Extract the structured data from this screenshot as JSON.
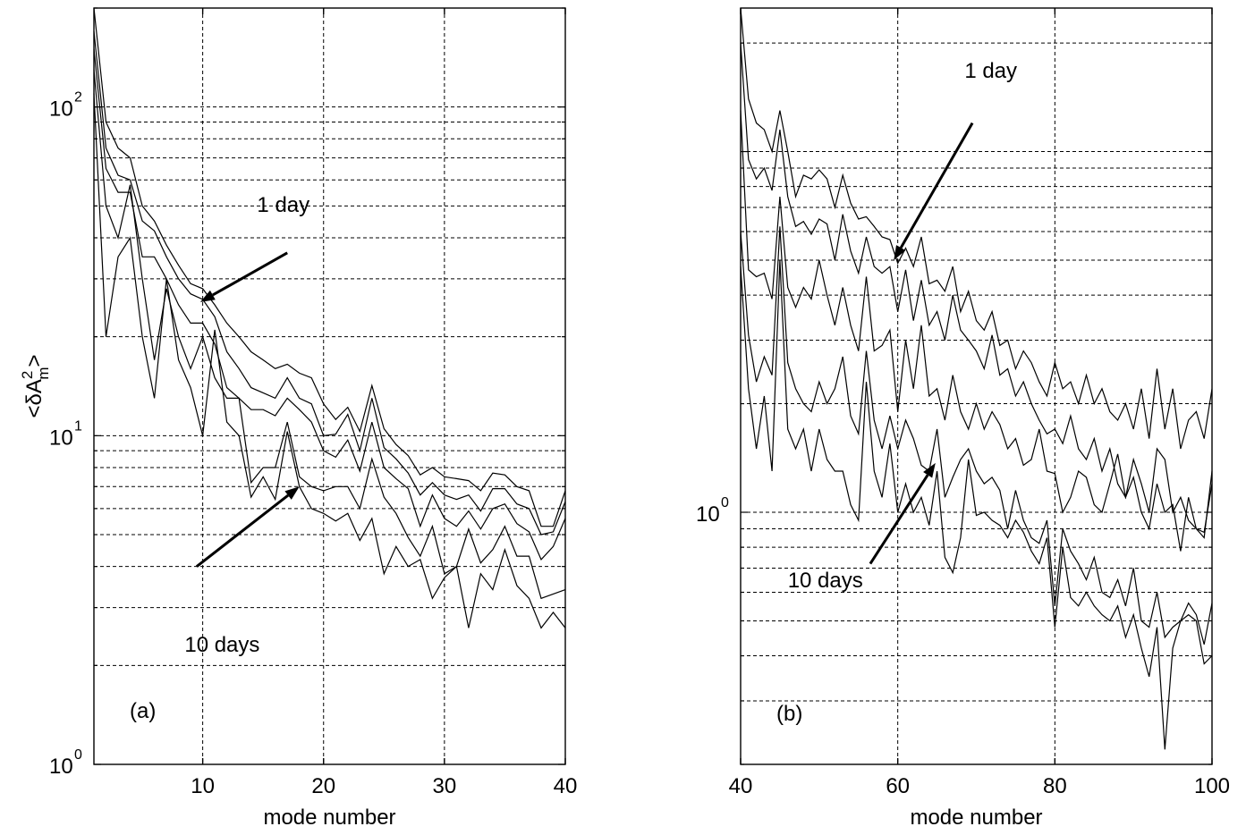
{
  "chart_data": [
    {
      "type": "line",
      "panel_label": "(a)",
      "xlabel": "mode number",
      "ylabel_prefix": "<δA",
      "ylabel_sup": "2",
      "ylabel_sub": "m",
      "ylabel_suffix": ">",
      "yscale": "log",
      "xlim": [
        1,
        40
      ],
      "ylim": [
        1,
        200
      ],
      "grid": true,
      "xticks": [
        10,
        20,
        30,
        40
      ],
      "yticks": [
        {
          "value": 1,
          "base": "10",
          "exp": "0"
        },
        {
          "value": 10,
          "base": "10",
          "exp": "1"
        },
        {
          "value": 100,
          "base": "10",
          "exp": "2"
        }
      ],
      "annotations": [
        {
          "text": "1 day",
          "label_at": [
            14.5,
            48
          ],
          "arrow_from": [
            17,
            36
          ],
          "arrow_to": [
            9.8,
            25.5
          ]
        },
        {
          "text": "10 days",
          "label_at": [
            8.5,
            2.2
          ],
          "arrow_from": [
            9.5,
            4.0
          ],
          "arrow_to": [
            18,
            7.0
          ]
        }
      ],
      "series": [
        {
          "x": [
            1,
            2,
            3,
            4,
            5,
            6,
            7,
            8,
            9,
            10,
            11,
            12,
            13,
            14,
            15,
            16,
            17,
            18,
            19,
            20,
            21,
            22,
            23,
            24,
            25,
            26,
            27,
            28,
            29,
            30,
            31,
            32,
            33,
            34,
            35,
            36,
            37,
            38,
            39,
            40
          ],
          "values": [
            200,
            90,
            75,
            70,
            50,
            45,
            38,
            33,
            29,
            28,
            25,
            22,
            20,
            18,
            17,
            16,
            16.5,
            15.5,
            15,
            12.5,
            11.2,
            12.2,
            10.3,
            14.2,
            10.5,
            9.4,
            8.7,
            7.6,
            8.0,
            7.5,
            7.4,
            7.3,
            6.8,
            7.7,
            7.6,
            7.0,
            6.8,
            5.3,
            5.3,
            6.8
          ]
        },
        {
          "x": [
            1,
            2,
            3,
            4,
            5,
            6,
            7,
            8,
            9,
            10,
            11,
            12,
            13,
            14,
            15,
            16,
            17,
            18,
            19,
            20,
            21,
            22,
            23,
            24,
            25,
            26,
            27,
            28,
            29,
            30,
            31,
            32,
            33,
            34,
            35,
            36,
            37,
            38,
            39,
            40
          ],
          "values": [
            170,
            75,
            62,
            60,
            45,
            42,
            35,
            30,
            27,
            26,
            23,
            18,
            16,
            14,
            13.5,
            13,
            15,
            13,
            12.5,
            10.0,
            10.1,
            11.6,
            9.0,
            13.0,
            9.2,
            8.5,
            7.7,
            6.6,
            7.2,
            6.6,
            6.4,
            6.6,
            5.9,
            6.9,
            6.9,
            6.2,
            6.0,
            5.0,
            5.1,
            6.3
          ]
        },
        {
          "x": [
            1,
            2,
            3,
            4,
            5,
            6,
            7,
            8,
            9,
            10,
            11,
            12,
            13,
            14,
            15,
            16,
            17,
            18,
            19,
            20,
            21,
            22,
            23,
            24,
            25,
            26,
            27,
            28,
            29,
            30,
            31,
            32,
            33,
            34,
            35,
            36,
            37,
            38,
            39,
            40
          ],
          "values": [
            150,
            65,
            55,
            55,
            35,
            35,
            30,
            25,
            22,
            22,
            19,
            14,
            13,
            12,
            12,
            11.5,
            13,
            12,
            11,
            9.0,
            8.6,
            9.7,
            7.8,
            11.0,
            8.0,
            7.4,
            6.9,
            5.3,
            6.6,
            5.6,
            5.3,
            5.9,
            5.2,
            6.0,
            6.2,
            5.4,
            5.1,
            4.2,
            4.6,
            5.6
          ]
        },
        {
          "x": [
            1,
            2,
            3,
            4,
            5,
            6,
            7,
            8,
            9,
            10,
            11,
            12,
            13,
            14,
            15,
            16,
            17,
            18,
            19,
            20,
            21,
            22,
            23,
            24,
            25,
            26,
            27,
            28,
            29,
            30,
            31,
            32,
            33,
            34,
            35,
            36,
            37,
            38,
            39,
            40
          ],
          "values": [
            130,
            50,
            40,
            58,
            30,
            17,
            28,
            20,
            16,
            20,
            15,
            13,
            13,
            7.2,
            8,
            8,
            11,
            7.5,
            7,
            6.8,
            7.0,
            7.0,
            6.0,
            8.5,
            6.5,
            5.8,
            4.9,
            4.3,
            5.3,
            3.8,
            4.0,
            5.2,
            4.1,
            4.5,
            5.3,
            4.3,
            4.3,
            3.2,
            3.3,
            3.4
          ]
        },
        {
          "x": [
            1,
            2,
            3,
            4,
            5,
            6,
            7,
            8,
            9,
            10,
            11,
            12,
            13,
            14,
            15,
            16,
            17,
            18,
            19,
            20,
            21,
            22,
            23,
            24,
            25,
            26,
            27,
            28,
            29,
            30,
            31,
            32,
            33,
            34,
            35,
            36,
            37,
            38,
            39,
            40
          ],
          "values": [
            110,
            20,
            35,
            40,
            20,
            13,
            30,
            17,
            14,
            10,
            21,
            11,
            10,
            6.5,
            7.5,
            6.4,
            10.3,
            7,
            6,
            5.8,
            5.5,
            5.8,
            4.8,
            5.6,
            3.8,
            4.6,
            4.0,
            4.2,
            3.2,
            3.7,
            4.0,
            2.6,
            3.8,
            3.4,
            4.5,
            3.5,
            3.2,
            2.6,
            2.9,
            2.6
          ]
        }
      ]
    },
    {
      "type": "line",
      "panel_label": "(b)",
      "xlabel": "mode number",
      "yscale": "log",
      "xlim": [
        40,
        100
      ],
      "ylim": [
        0.2,
        25
      ],
      "grid": true,
      "xticks": [
        40,
        60,
        80,
        100
      ],
      "yticks": [
        {
          "value": 1,
          "base": "10",
          "exp": "0"
        }
      ],
      "annotations": [
        {
          "text": "1 day",
          "label_at": [
            68.5,
            16
          ],
          "arrow_from": [
            69.5,
            12
          ],
          "arrow_to": [
            59.5,
            5.0
          ]
        },
        {
          "text": "10 days",
          "label_at": [
            46,
            0.62
          ],
          "arrow_from": [
            56.5,
            0.72
          ],
          "arrow_to": [
            64.8,
            1.37
          ]
        }
      ],
      "series": [
        {
          "x": [
            40,
            41,
            42,
            43,
            44,
            45,
            46,
            47,
            48,
            49,
            50,
            51,
            52,
            53,
            54,
            55,
            56,
            57,
            58,
            59,
            60,
            61,
            62,
            63,
            64,
            65,
            66,
            67,
            68,
            69,
            70,
            71,
            72,
            73,
            74,
            75,
            76,
            77,
            78,
            79,
            80,
            81,
            82,
            83,
            84,
            85,
            86,
            87,
            88,
            89,
            90,
            91,
            92,
            93,
            94,
            95,
            96,
            97,
            98,
            99,
            100
          ],
          "values": [
            25,
            14,
            12,
            11.5,
            10,
            13,
            10,
            7.5,
            8.6,
            8.4,
            8.9,
            8.4,
            7,
            8.6,
            7.2,
            6.5,
            6.6,
            6.2,
            5.8,
            5.7,
            4.9,
            5.4,
            4.8,
            5.8,
            4.3,
            4.4,
            4.1,
            4.8,
            3.6,
            4.1,
            3.4,
            3.2,
            3.6,
            2.9,
            3.0,
            2.5,
            2.8,
            2.6,
            2.3,
            2.1,
            2.6,
            2.2,
            2.3,
            2.0,
            2.4,
            2.0,
            2.2,
            1.9,
            1.8,
            2.0,
            1.7,
            2.2,
            1.6,
            2.5,
            1.7,
            2.2,
            1.5,
            1.8,
            1.9,
            1.6,
            2.2
          ]
        },
        {
          "x": [
            40,
            41,
            42,
            43,
            44,
            45,
            46,
            47,
            48,
            49,
            50,
            51,
            52,
            53,
            54,
            55,
            56,
            57,
            58,
            59,
            60,
            61,
            62,
            63,
            64,
            65,
            66,
            67,
            68,
            69,
            70,
            71,
            72,
            73,
            74,
            75,
            76,
            77,
            78,
            79,
            80,
            81,
            82,
            83,
            84,
            85,
            86,
            87,
            88,
            89,
            90,
            91,
            92,
            93,
            94,
            95,
            96,
            97,
            98,
            99,
            100
          ],
          "values": [
            20,
            9.5,
            8.4,
            9.0,
            7.8,
            11.5,
            7.5,
            6.2,
            6.4,
            5.9,
            6.5,
            6.3,
            5.0,
            6.7,
            5.3,
            4.6,
            5.8,
            4.8,
            4.6,
            4.8,
            3.6,
            4.7,
            3.4,
            4.4,
            3.3,
            3.6,
            3.0,
            4.0,
            3.2,
            3.0,
            2.8,
            2.5,
            3.1,
            2.4,
            2.5,
            2.1,
            2.3,
            2.0,
            1.8,
            1.65,
            1.7,
            1.55,
            1.85,
            1.5,
            1.4,
            1.6,
            1.3,
            1.5,
            1.2,
            1.1,
            1.4,
            1.2,
            1.0,
            1.5,
            1.4,
            1.0,
            1.1,
            0.95,
            0.9,
            0.88,
            1.2
          ]
        },
        {
          "x": [
            40,
            41,
            42,
            43,
            44,
            45,
            46,
            47,
            48,
            49,
            50,
            51,
            52,
            53,
            54,
            55,
            56,
            57,
            58,
            59,
            60,
            61,
            62,
            63,
            64,
            65,
            66,
            67,
            68,
            69,
            70,
            71,
            72,
            73,
            74,
            75,
            76,
            77,
            78,
            79,
            80,
            81,
            82,
            83,
            84,
            85,
            86,
            87,
            88,
            89,
            90,
            91,
            92,
            93,
            94,
            95,
            96,
            97,
            98,
            99,
            100
          ],
          "values": [
            13,
            4.7,
            4.5,
            4.6,
            3.9,
            7.5,
            4.2,
            3.7,
            4.2,
            3.9,
            5.0,
            4.0,
            3.3,
            4.2,
            3.3,
            2.8,
            4.5,
            2.8,
            2.9,
            3.2,
            1.9,
            3.0,
            2.2,
            3.3,
            2.1,
            2.2,
            1.8,
            2.4,
            1.9,
            1.7,
            2.0,
            1.7,
            1.9,
            1.75,
            1.5,
            1.6,
            1.35,
            1.4,
            1.7,
            1.3,
            1.28,
            1.0,
            1.1,
            1.3,
            1.25,
            1.05,
            1.0,
            1.2,
            1.45,
            1.1,
            1.25,
            1.0,
            0.9,
            1.2,
            1.0,
            1.05,
            0.78,
            1.1,
            0.9,
            0.85,
            1.3
          ]
        },
        {
          "x": [
            40,
            41,
            42,
            43,
            44,
            45,
            46,
            47,
            48,
            49,
            50,
            51,
            52,
            53,
            54,
            55,
            56,
            57,
            58,
            59,
            60,
            61,
            62,
            63,
            64,
            65,
            66,
            67,
            68,
            69,
            70,
            71,
            72,
            73,
            74,
            75,
            76,
            77,
            78,
            79,
            80,
            81,
            82,
            83,
            84,
            85,
            86,
            87,
            88,
            89,
            90,
            91,
            92,
            93,
            94,
            95,
            96,
            97,
            98,
            99,
            100
          ],
          "values": [
            6.0,
            3.1,
            2.3,
            2.7,
            2.4,
            6.2,
            2.6,
            2.2,
            2.0,
            1.9,
            2.3,
            2.0,
            2.2,
            2.7,
            1.85,
            1.65,
            2.8,
            1.8,
            1.5,
            1.85,
            1.5,
            1.8,
            1.6,
            1.35,
            1.3,
            1.7,
            1.1,
            1.25,
            1.4,
            1.5,
            1.3,
            1.2,
            1.25,
            1.15,
            0.9,
            1.15,
            0.95,
            0.85,
            0.82,
            0.95,
            0.55,
            0.9,
            0.78,
            0.72,
            0.65,
            0.75,
            0.6,
            0.58,
            0.65,
            0.55,
            0.7,
            0.5,
            0.48,
            0.6,
            0.45,
            0.48,
            0.5,
            0.56,
            0.52,
            0.43,
            0.56
          ]
        },
        {
          "x": [
            40,
            41,
            42,
            43,
            44,
            45,
            46,
            47,
            48,
            49,
            50,
            51,
            52,
            53,
            54,
            55,
            56,
            57,
            58,
            59,
            60,
            61,
            62,
            63,
            64,
            65,
            66,
            67,
            68,
            69,
            70,
            71,
            72,
            73,
            74,
            75,
            76,
            77,
            78,
            79,
            80,
            81,
            82,
            83,
            84,
            85,
            86,
            87,
            88,
            89,
            90,
            91,
            92,
            93,
            94,
            95,
            96,
            97,
            98,
            99,
            100
          ],
          "values": [
            4.8,
            2.2,
            1.5,
            2.1,
            1.3,
            5.0,
            1.7,
            1.5,
            1.7,
            1.3,
            1.7,
            1.4,
            1.3,
            1.3,
            1.05,
            0.95,
            2.3,
            1.3,
            1.1,
            1.55,
            1.0,
            1.2,
            1.0,
            1.1,
            0.92,
            1.3,
            0.75,
            0.68,
            0.85,
            1.4,
            0.98,
            1.0,
            0.95,
            0.92,
            0.85,
            0.95,
            0.88,
            0.78,
            0.72,
            0.85,
            0.48,
            0.8,
            0.58,
            0.55,
            0.6,
            0.55,
            0.52,
            0.5,
            0.55,
            0.45,
            0.52,
            0.42,
            0.35,
            0.48,
            0.22,
            0.42,
            0.5,
            0.52,
            0.5,
            0.38,
            0.4
          ]
        }
      ]
    }
  ]
}
